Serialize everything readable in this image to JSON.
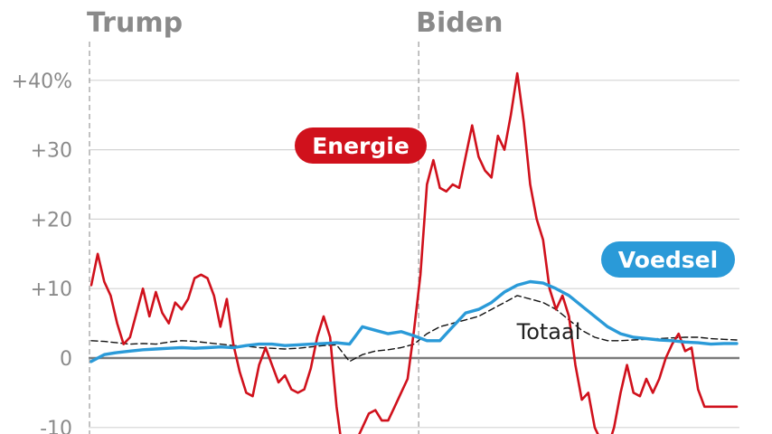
{
  "chart_data": {
    "type": "line",
    "x_range": [
      0,
      100
    ],
    "ylim": [
      -10,
      44
    ],
    "yticks": [
      {
        "value": 40,
        "label": "+40%"
      },
      {
        "value": 30,
        "label": "+30"
      },
      {
        "value": 20,
        "label": "+20"
      },
      {
        "value": 10,
        "label": "+10"
      },
      {
        "value": 0,
        "label": "0"
      },
      {
        "value": -10,
        "label": "-10"
      }
    ],
    "periods": [
      {
        "label": "Trump",
        "start": 0
      },
      {
        "label": "Biden",
        "start": 51
      }
    ],
    "series": [
      {
        "name": "Energie",
        "color": "#d0111c",
        "style": "solid",
        "x": [
          0,
          1,
          2,
          3,
          4,
          5,
          6,
          7,
          8,
          9,
          10,
          11,
          12,
          13,
          14,
          15,
          16,
          17,
          18,
          19,
          20,
          21,
          22,
          23,
          24,
          25,
          26,
          27,
          28,
          29,
          30,
          31,
          32,
          33,
          34,
          35,
          36,
          37,
          38,
          39,
          40,
          41,
          42,
          43,
          44,
          45,
          46,
          47,
          48,
          49,
          50,
          51,
          52,
          53,
          54,
          55,
          56,
          57,
          58,
          59,
          60,
          61,
          62,
          63,
          64,
          65,
          66,
          67,
          68,
          69,
          70,
          71,
          72,
          73,
          74,
          75,
          76,
          77,
          78,
          79,
          80,
          81,
          82,
          83,
          84,
          85,
          86,
          87,
          88,
          89,
          90,
          91,
          92,
          93,
          94,
          95,
          96,
          97,
          98,
          99,
          100
        ],
        "values": [
          10.5,
          15.0,
          11.0,
          9.0,
          5.0,
          2.0,
          3.0,
          6.5,
          10.0,
          6.0,
          9.5,
          6.5,
          5.0,
          8.0,
          7.0,
          8.5,
          11.5,
          12.0,
          11.5,
          9.0,
          4.5,
          8.5,
          2.0,
          -2.0,
          -5.0,
          -5.5,
          -1.0,
          1.5,
          -1.0,
          -3.5,
          -2.5,
          -4.5,
          -5.0,
          -4.5,
          -1.5,
          3.0,
          6.0,
          3.0,
          -7.0,
          -14.0,
          -13.0,
          -12.0,
          -10.0,
          -8.0,
          -7.5,
          -9.0,
          -9.0,
          -7.0,
          -5.0,
          -3.0,
          4.0,
          12.0,
          25.0,
          28.5,
          24.5,
          24.0,
          25.0,
          24.5,
          29.0,
          33.5,
          29.0,
          27.0,
          26.0,
          32.0,
          30.0,
          35.0,
          41.0,
          34.0,
          25.0,
          20.0,
          17.0,
          10.0,
          7.0,
          9.0,
          6.0,
          -1.0,
          -6.0,
          -5.0,
          -10.0,
          -12.0,
          -13.0,
          -10.0,
          -5.0,
          -1.0,
          -5.0,
          -5.5,
          -3.0,
          -5.0,
          -3.0,
          0.0,
          2.0,
          3.5,
          1.0,
          1.5,
          -4.5,
          -7.0,
          -7.0,
          -7.0,
          -7.0,
          -7.0,
          -7.0
        ]
      },
      {
        "name": "Voedsel",
        "color": "#2a9ad8",
        "style": "solid",
        "x": [
          0,
          2,
          4,
          6,
          8,
          10,
          12,
          14,
          16,
          18,
          20,
          22,
          24,
          26,
          28,
          30,
          32,
          34,
          36,
          38,
          40,
          42,
          44,
          46,
          48,
          50,
          52,
          54,
          56,
          58,
          60,
          62,
          64,
          66,
          68,
          70,
          72,
          74,
          76,
          78,
          80,
          82,
          84,
          86,
          88,
          90,
          92,
          94,
          96,
          98,
          100
        ],
        "values": [
          -0.5,
          0.5,
          0.8,
          1.0,
          1.2,
          1.3,
          1.4,
          1.5,
          1.4,
          1.5,
          1.6,
          1.5,
          1.8,
          2.0,
          2.0,
          1.8,
          1.9,
          2.0,
          2.1,
          2.2,
          2.0,
          4.5,
          4.0,
          3.5,
          3.8,
          3.2,
          2.5,
          2.5,
          4.5,
          6.5,
          7.0,
          8.0,
          9.5,
          10.5,
          11.0,
          10.8,
          10.0,
          9.0,
          7.5,
          6.0,
          4.5,
          3.5,
          3.0,
          2.8,
          2.6,
          2.5,
          2.3,
          2.2,
          2.0,
          2.1,
          2.1
        ]
      },
      {
        "name": "Totaal",
        "color": "#111111",
        "style": "dashed",
        "x": [
          0,
          2,
          4,
          6,
          8,
          10,
          12,
          14,
          16,
          18,
          20,
          22,
          24,
          26,
          28,
          30,
          32,
          34,
          36,
          38,
          40,
          42,
          44,
          46,
          48,
          50,
          52,
          54,
          56,
          58,
          60,
          62,
          64,
          66,
          68,
          70,
          72,
          74,
          76,
          78,
          80,
          82,
          84,
          86,
          88,
          90,
          92,
          94,
          96,
          98,
          100
        ],
        "values": [
          2.5,
          2.4,
          2.2,
          2.0,
          2.1,
          2.0,
          2.3,
          2.5,
          2.4,
          2.2,
          2.0,
          1.8,
          1.7,
          1.5,
          1.4,
          1.3,
          1.4,
          1.6,
          1.8,
          1.9,
          -0.5,
          0.5,
          1.0,
          1.2,
          1.5,
          2.0,
          3.5,
          4.5,
          5.0,
          5.5,
          6.0,
          7.0,
          8.0,
          9.0,
          8.5,
          8.0,
          7.0,
          5.5,
          4.0,
          3.0,
          2.5,
          2.5,
          2.6,
          2.7,
          2.8,
          2.9,
          3.0,
          3.0,
          2.8,
          2.7,
          2.6
        ]
      }
    ]
  }
}
